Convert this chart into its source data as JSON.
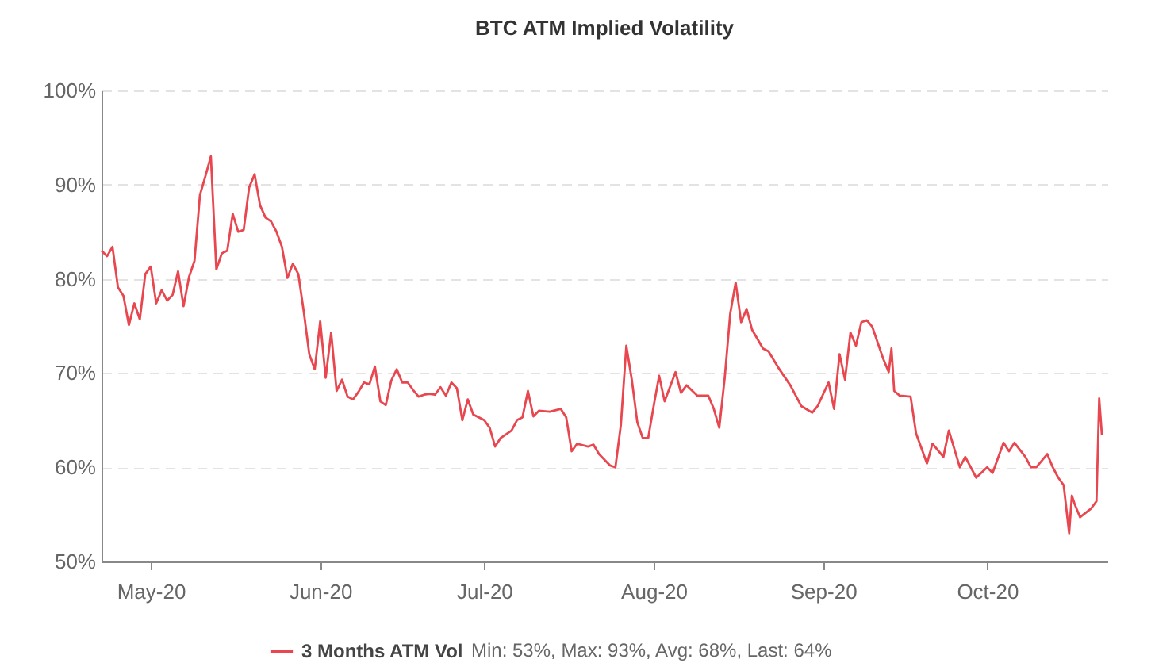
{
  "chart_data": {
    "type": "line",
    "title": "BTC ATM Implied Volatility",
    "x": [
      "2020-04-22",
      "2020-04-23",
      "2020-04-24",
      "2020-04-25",
      "2020-04-26",
      "2020-04-27",
      "2020-04-28",
      "2020-04-29",
      "2020-04-30",
      "2020-05-01",
      "2020-05-02",
      "2020-05-03",
      "2020-05-04",
      "2020-05-05",
      "2020-05-06",
      "2020-05-07",
      "2020-05-08",
      "2020-05-09",
      "2020-05-10",
      "2020-05-11",
      "2020-05-12",
      "2020-05-13",
      "2020-05-14",
      "2020-05-15",
      "2020-05-16",
      "2020-05-17",
      "2020-05-18",
      "2020-05-19",
      "2020-05-20",
      "2020-05-21",
      "2020-05-22",
      "2020-05-23",
      "2020-05-24",
      "2020-05-25",
      "2020-05-26",
      "2020-05-27",
      "2020-05-28",
      "2020-05-29",
      "2020-05-30",
      "2020-05-31",
      "2020-06-01",
      "2020-06-02",
      "2020-06-03",
      "2020-06-04",
      "2020-06-05",
      "2020-06-06",
      "2020-06-07",
      "2020-06-08",
      "2020-06-09",
      "2020-06-10",
      "2020-06-11",
      "2020-06-12",
      "2020-06-13",
      "2020-06-14",
      "2020-06-15",
      "2020-06-16",
      "2020-06-17",
      "2020-06-18",
      "2020-06-19",
      "2020-06-20",
      "2020-06-21",
      "2020-06-22",
      "2020-06-23",
      "2020-06-24",
      "2020-06-25",
      "2020-06-26",
      "2020-06-27",
      "2020-06-28",
      "2020-06-29",
      "2020-07-01",
      "2020-07-02",
      "2020-07-03",
      "2020-07-04",
      "2020-07-06",
      "2020-07-07",
      "2020-07-08",
      "2020-07-09",
      "2020-07-10",
      "2020-07-11",
      "2020-07-13",
      "2020-07-15",
      "2020-07-16",
      "2020-07-17",
      "2020-07-18",
      "2020-07-20",
      "2020-07-21",
      "2020-07-22",
      "2020-07-24",
      "2020-07-25",
      "2020-07-26",
      "2020-07-27",
      "2020-07-28",
      "2020-07-29",
      "2020-07-30",
      "2020-07-31",
      "2020-08-01",
      "2020-08-02",
      "2020-08-03",
      "2020-08-05",
      "2020-08-06",
      "2020-08-07",
      "2020-08-09",
      "2020-08-11",
      "2020-08-12",
      "2020-08-13",
      "2020-08-14",
      "2020-08-15",
      "2020-08-16",
      "2020-08-17",
      "2020-08-18",
      "2020-08-19",
      "2020-08-21",
      "2020-08-22",
      "2020-08-24",
      "2020-08-26",
      "2020-08-28",
      "2020-08-30",
      "2020-08-31",
      "2020-09-02",
      "2020-09-03",
      "2020-09-04",
      "2020-09-05",
      "2020-09-06",
      "2020-09-07",
      "2020-09-08",
      "2020-09-09",
      "2020-09-10",
      "2020-09-12",
      "2020-09-13",
      "2020-09-13T12:00",
      "2020-09-14",
      "2020-09-15",
      "2020-09-17",
      "2020-09-18",
      "2020-09-20",
      "2020-09-21",
      "2020-09-23",
      "2020-09-24",
      "2020-09-26",
      "2020-09-27",
      "2020-09-29",
      "2020-10-01",
      "2020-10-02",
      "2020-10-04",
      "2020-10-05",
      "2020-10-06",
      "2020-10-08",
      "2020-10-09",
      "2020-10-10",
      "2020-10-12",
      "2020-10-13",
      "2020-10-14",
      "2020-10-15",
      "2020-10-16",
      "2020-10-16T12:00",
      "2020-10-17",
      "2020-10-18",
      "2020-10-20",
      "2020-10-21",
      "2020-10-21T12:00",
      "2020-10-22"
    ],
    "series": [
      {
        "name": "3 Months ATM Vol",
        "color": "#e8474f",
        "values": [
          83.0,
          82.4,
          83.4,
          79.1,
          78.2,
          75.1,
          77.4,
          75.7,
          80.5,
          81.3,
          77.4,
          78.8,
          77.7,
          78.3,
          80.8,
          77.1,
          80.2,
          81.9,
          88.9,
          90.9,
          93,
          81.0,
          82.7,
          83.0,
          86.9,
          85.0,
          85.2,
          89.7,
          91.1,
          87.8,
          86.5,
          86.1,
          85.0,
          83.4,
          80.1,
          81.6,
          80.5,
          76.5,
          72.0,
          70.4,
          75.5,
          69.5,
          74.3,
          68.1,
          69.3,
          67.5,
          67.2,
          68.0,
          69.0,
          68.8,
          70.7,
          67.0,
          66.6,
          69.2,
          70.4,
          69.0,
          69.0,
          68.2,
          67.5,
          67.7,
          67.8,
          67.7,
          68.5,
          67.6,
          69.0,
          68.4,
          65.0,
          67.2,
          65.6,
          65.0,
          64.2,
          62.2,
          63.1,
          63.9,
          65.0,
          65.3,
          68.1,
          65.4,
          66.0,
          65.9,
          66.2,
          65.3,
          61.7,
          62.5,
          62.2,
          62.4,
          61.4,
          60.2,
          60.0,
          64.5,
          72.9,
          69.3,
          64.8,
          63.1,
          63.1,
          66.5,
          69.7,
          67.0,
          70.1,
          67.9,
          68.7,
          67.6,
          67.6,
          66.2,
          64.2,
          69.5,
          76.3,
          79.6,
          75.4,
          76.8,
          74.6,
          72.6,
          72.3,
          70.4,
          68.7,
          66.5,
          65.8,
          66.5,
          69.0,
          66.2,
          72.0,
          69.3,
          74.3,
          72.9,
          75.4,
          75.6,
          74.9,
          71.5,
          70.1,
          72.6,
          68.1,
          67.6,
          67.5,
          63.6,
          60.4,
          62.5,
          61.1,
          63.9,
          60.0,
          61.1,
          58.9,
          60.0,
          59.4,
          62.6,
          61.7,
          62.6,
          61.1,
          60.0,
          60.0,
          61.4,
          60.0,
          58.9,
          58.1,
          53,
          57.0,
          56.1,
          54.7,
          55.6,
          56.4,
          67.3,
          63.4
        ]
      }
    ],
    "xlim": [
      "2020-04-22",
      "2020-10-23"
    ],
    "xticks": [
      {
        "value": "2020-05-01",
        "label": "May-20"
      },
      {
        "value": "2020-06-01",
        "label": "Jun-20"
      },
      {
        "value": "2020-07-01",
        "label": "Jul-20"
      },
      {
        "value": "2020-08-01",
        "label": "Aug-20"
      },
      {
        "value": "2020-09-01",
        "label": "Sep-20"
      },
      {
        "value": "2020-10-01",
        "label": "Oct-20"
      }
    ],
    "ylim": [
      50,
      100
    ],
    "yticks": [
      {
        "value": 50,
        "label": "50%"
      },
      {
        "value": 60,
        "label": "60%"
      },
      {
        "value": 70,
        "label": "70%"
      },
      {
        "value": 80,
        "label": "80%"
      },
      {
        "value": 90,
        "label": "90%"
      },
      {
        "value": 100,
        "label": "100%"
      }
    ],
    "grid": "y",
    "legend": "bottom",
    "marker": "none",
    "line_style": "solid",
    "annotations": [
      "Min: 53%, Max: 93%, Avg: 68%, Last: 64%"
    ]
  }
}
